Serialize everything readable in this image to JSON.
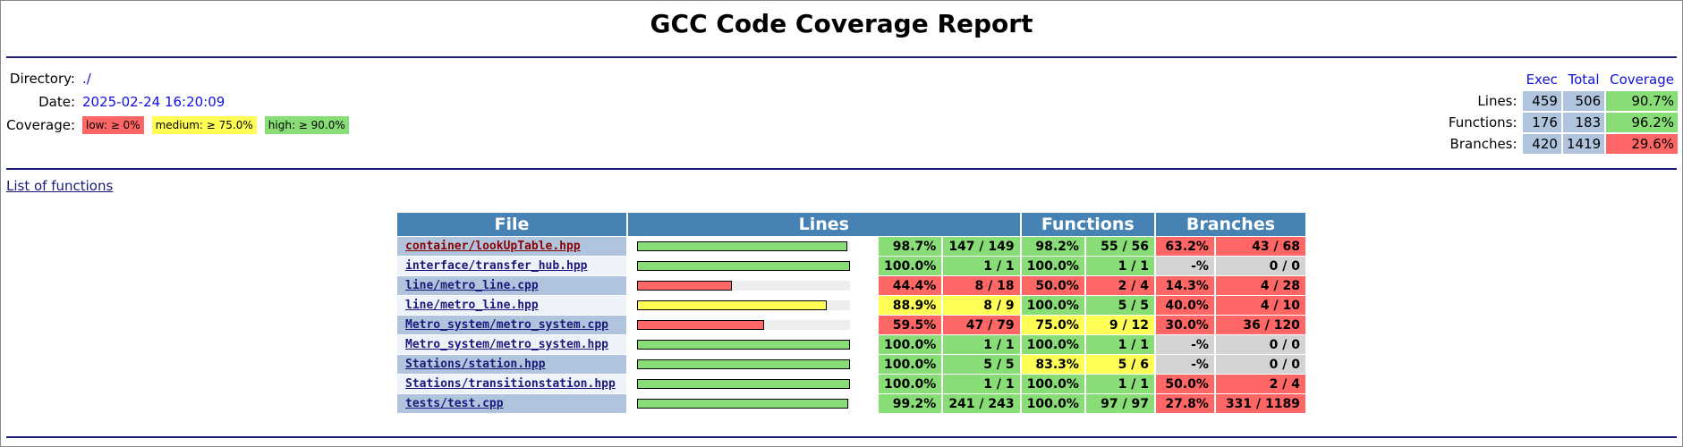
{
  "page": {
    "title": "GCC Code Coverage Report"
  },
  "header": {
    "directory_label": "Directory:",
    "directory": "./",
    "date_label": "Date:",
    "date": "2025-02-24 16:20:09",
    "coverage_label": "Coverage:",
    "legend": {
      "low": "low: ≥ 0%",
      "medium": "medium: ≥ 75.0%",
      "high": "high: ≥ 90.0%"
    }
  },
  "summary": {
    "col_exec": "Exec",
    "col_total": "Total",
    "col_coverage": "Coverage",
    "rows": [
      {
        "label": "Lines:",
        "exec": "459",
        "total": "506",
        "coverage": "90.7%",
        "level": "good"
      },
      {
        "label": "Functions:",
        "exec": "176",
        "total": "183",
        "coverage": "96.2%",
        "level": "good"
      },
      {
        "label": "Branches:",
        "exec": "420",
        "total": "1419",
        "coverage": "29.6%",
        "level": "bad"
      }
    ]
  },
  "links": {
    "list_of_functions": "List of functions"
  },
  "table": {
    "headers": {
      "file": "File",
      "lines": "Lines",
      "functions": "Functions",
      "branches": "Branches"
    },
    "rows": [
      {
        "file": "container/lookUpTable.hpp",
        "line_fraction": 0.987,
        "line_pct": "98.7%",
        "line_count": "147 / 149",
        "line_level": "hi",
        "fn_pct": "98.2%",
        "fn_count": "55 / 56",
        "fn_level": "hi",
        "br_pct": "63.2%",
        "br_count": "43 / 68",
        "br_level": "lo",
        "link_color": "#8b0000"
      },
      {
        "file": "interface/transfer_hub.hpp",
        "line_fraction": 1.0,
        "line_pct": "100.0%",
        "line_count": "1 / 1",
        "line_level": "hi",
        "fn_pct": "100.0%",
        "fn_count": "1 / 1",
        "fn_level": "hi",
        "br_pct": "-%",
        "br_count": "0 / 0",
        "br_level": "na"
      },
      {
        "file": "line/metro_line.cpp",
        "line_fraction": 0.444,
        "line_pct": "44.4%",
        "line_count": "8 / 18",
        "line_level": "lo",
        "fn_pct": "50.0%",
        "fn_count": "2 / 4",
        "fn_level": "lo",
        "br_pct": "14.3%",
        "br_count": "4 / 28",
        "br_level": "lo"
      },
      {
        "file": "line/metro_line.hpp",
        "line_fraction": 0.889,
        "line_pct": "88.9%",
        "line_count": "8 / 9",
        "line_level": "med",
        "fn_pct": "100.0%",
        "fn_count": "5 / 5",
        "fn_level": "hi",
        "br_pct": "40.0%",
        "br_count": "4 / 10",
        "br_level": "lo"
      },
      {
        "file": "Metro_system/metro_system.cpp",
        "line_fraction": 0.595,
        "line_pct": "59.5%",
        "line_count": "47 / 79",
        "line_level": "lo",
        "fn_pct": "75.0%",
        "fn_count": "9 / 12",
        "fn_level": "med",
        "br_pct": "30.0%",
        "br_count": "36 / 120",
        "br_level": "lo"
      },
      {
        "file": "Metro_system/metro_system.hpp",
        "line_fraction": 1.0,
        "line_pct": "100.0%",
        "line_count": "1 / 1",
        "line_level": "hi",
        "fn_pct": "100.0%",
        "fn_count": "1 / 1",
        "fn_level": "hi",
        "br_pct": "-%",
        "br_count": "0 / 0",
        "br_level": "na"
      },
      {
        "file": "Stations/station.hpp",
        "line_fraction": 1.0,
        "line_pct": "100.0%",
        "line_count": "5 / 5",
        "line_level": "hi",
        "fn_pct": "83.3%",
        "fn_count": "5 / 6",
        "fn_level": "med",
        "br_pct": "-%",
        "br_count": "0 / 0",
        "br_level": "na"
      },
      {
        "file": "Stations/transitionstation.hpp",
        "line_fraction": 1.0,
        "line_pct": "100.0%",
        "line_count": "1 / 1",
        "line_level": "hi",
        "fn_pct": "100.0%",
        "fn_count": "1 / 1",
        "fn_level": "hi",
        "br_pct": "50.0%",
        "br_count": "2 / 4",
        "br_level": "lo"
      },
      {
        "file": "tests/test.cpp",
        "line_fraction": 0.992,
        "line_pct": "99.2%",
        "line_count": "241 / 243",
        "line_level": "hi",
        "fn_pct": "100.0%",
        "fn_count": "97 / 97",
        "fn_level": "hi",
        "br_pct": "27.8%",
        "br_count": "331 / 1189",
        "br_level": "lo"
      }
    ]
  },
  "colors": {
    "high": "#88dd77",
    "medium": "#ffff55",
    "low": "#ff6666",
    "none": "#d3d3d3",
    "header_bg": "#4682b4",
    "summary_cell": "#b0c4de",
    "link": "#1a1a7a"
  }
}
